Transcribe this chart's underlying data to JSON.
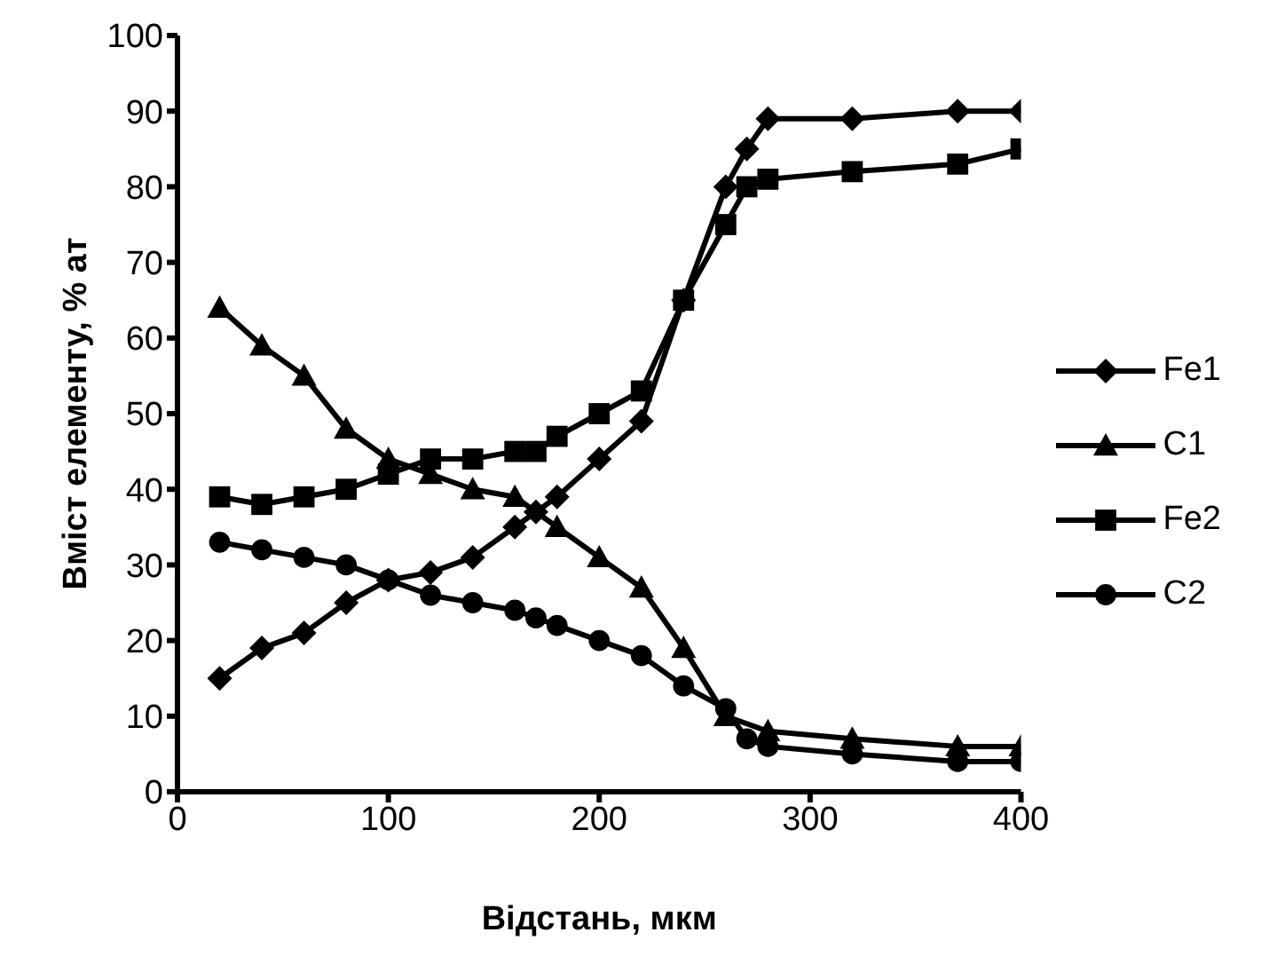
{
  "chart_data": {
    "type": "line",
    "xlabel": "Відстань, мкм",
    "ylabel": "Вміст елементу, % ат",
    "xlim": [
      0,
      400
    ],
    "xticks": [
      0,
      100,
      200,
      300,
      400
    ],
    "ylim": [
      0,
      100
    ],
    "yticks": [
      0,
      10,
      20,
      30,
      40,
      50,
      60,
      70,
      80,
      90,
      100
    ],
    "grid": false,
    "legend": "right",
    "line_style": "solid",
    "series": [
      {
        "name": "Fe1",
        "color": "#000000",
        "marker": "diamond",
        "x": [
          20,
          40,
          60,
          80,
          100,
          120,
          140,
          160,
          170,
          180,
          200,
          220,
          240,
          260,
          270,
          280,
          320,
          370,
          400
        ],
        "values": [
          15,
          19,
          21,
          25,
          28,
          29,
          31,
          35,
          37,
          39,
          44,
          49,
          65,
          80,
          85,
          89,
          89,
          90,
          90
        ]
      },
      {
        "name": "C1",
        "color": "#000000",
        "marker": "triangle",
        "x": [
          20,
          40,
          60,
          80,
          100,
          120,
          140,
          160,
          180,
          200,
          220,
          240,
          260,
          280,
          320,
          370,
          400
        ],
        "values": [
          64,
          59,
          55,
          48,
          44,
          42,
          40,
          39,
          35,
          31,
          27,
          19,
          10,
          8,
          7,
          6,
          6
        ]
      },
      {
        "name": "Fe2",
        "color": "#000000",
        "marker": "square",
        "x": [
          20,
          40,
          60,
          80,
          100,
          120,
          140,
          160,
          170,
          180,
          200,
          220,
          240,
          260,
          270,
          280,
          320,
          370,
          400
        ],
        "values": [
          39,
          38,
          39,
          40,
          42,
          44,
          44,
          45,
          45,
          47,
          50,
          53,
          65,
          75,
          80,
          81,
          82,
          83,
          85
        ]
      },
      {
        "name": "C2",
        "color": "#000000",
        "marker": "circle",
        "x": [
          20,
          40,
          60,
          80,
          100,
          120,
          140,
          160,
          170,
          180,
          200,
          220,
          240,
          260,
          270,
          280,
          320,
          370,
          400
        ],
        "values": [
          33,
          32,
          31,
          30,
          28,
          26,
          25,
          24,
          23,
          22,
          20,
          18,
          14,
          11,
          7,
          6,
          5,
          4,
          4
        ]
      }
    ]
  }
}
